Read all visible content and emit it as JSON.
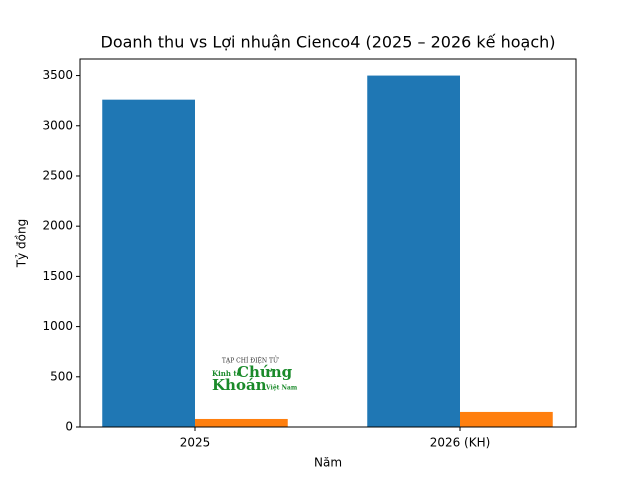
{
  "chart_data": {
    "type": "bar",
    "title": "Doanh thu vs Lợi nhuận Cienco4 (2025 – 2026 kế hoạch)",
    "x_label": "Năm",
    "y_label": "Tỷ đồng",
    "categories": [
      "2025",
      "2026 (KH)"
    ],
    "series": [
      {
        "color": "#1f77b4",
        "values": [
          3260,
          3500
        ]
      },
      {
        "color": "#ff7f0e",
        "values": [
          80,
          150
        ]
      }
    ],
    "ylim": [
      0,
      3665
    ],
    "yticks": [
      0,
      500,
      1000,
      1500,
      2000,
      2500,
      3000,
      3500
    ],
    "grid": false,
    "watermark": [
      "TẠP CHÍ ĐIỆN TỬ",
      "Kinh tế",
      "Chứng",
      "Khoán",
      "Việt Nam"
    ]
  }
}
